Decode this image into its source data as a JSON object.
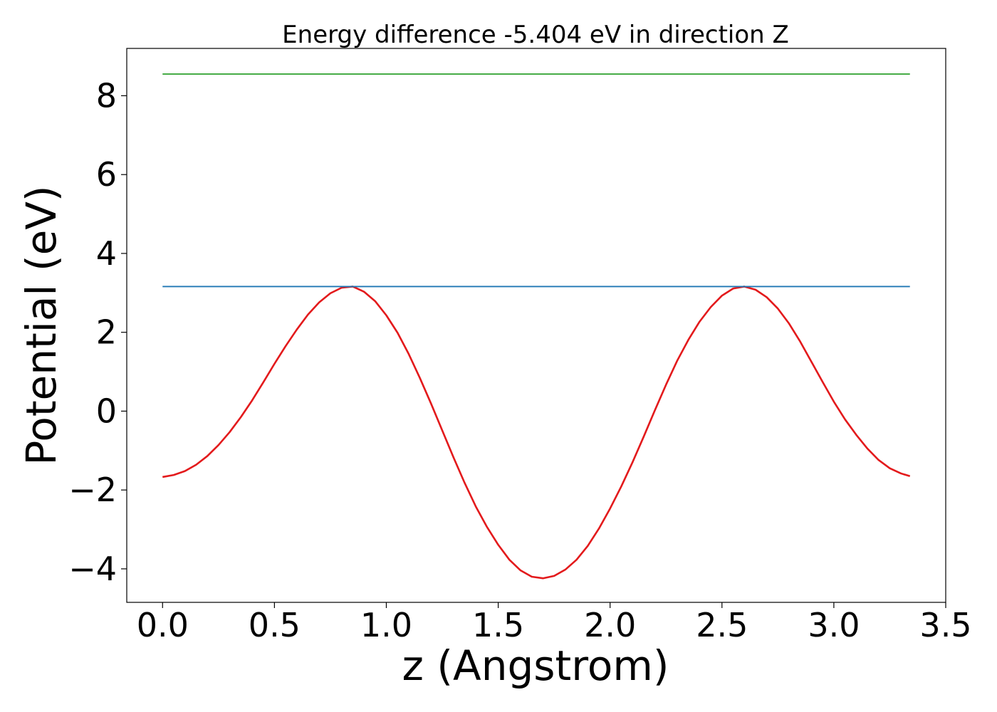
{
  "chart_data": {
    "type": "line",
    "title": "Energy difference -5.404 eV in direction Z",
    "xlabel": "z (Angstrom)",
    "ylabel": "Potential (eV)",
    "xlim": [
      -0.16,
      3.5
    ],
    "ylim": [
      -4.85,
      9.2
    ],
    "xticks": [
      0.0,
      0.5,
      1.0,
      1.5,
      2.0,
      2.5,
      3.0,
      3.5
    ],
    "xtick_labels": [
      "0.0",
      "0.5",
      "1.0",
      "1.5",
      "2.0",
      "2.5",
      "3.0",
      "3.5"
    ],
    "yticks": [
      -4,
      -2,
      0,
      2,
      4,
      6,
      8
    ],
    "ytick_labels": [
      "−4",
      "−2",
      "0",
      "2",
      "4",
      "6",
      "8"
    ],
    "grid": false,
    "legend": "none",
    "series": [
      {
        "color": "#e31a1c",
        "x": [
          0.0,
          0.05,
          0.1,
          0.15,
          0.2,
          0.25,
          0.3,
          0.35,
          0.4,
          0.45,
          0.5,
          0.55,
          0.6,
          0.65,
          0.7,
          0.75,
          0.8,
          0.85,
          0.9,
          0.95,
          1.0,
          1.05,
          1.1,
          1.15,
          1.2,
          1.25,
          1.3,
          1.35,
          1.4,
          1.45,
          1.5,
          1.55,
          1.6,
          1.65,
          1.7,
          1.75,
          1.8,
          1.85,
          1.9,
          1.95,
          2.0,
          2.05,
          2.1,
          2.15,
          2.2,
          2.25,
          2.3,
          2.35,
          2.4,
          2.45,
          2.5,
          2.55,
          2.6,
          2.65,
          2.7,
          2.75,
          2.8,
          2.85,
          2.9,
          2.95,
          3.0,
          3.05,
          3.1,
          3.15,
          3.2,
          3.25,
          3.3,
          3.34
        ],
        "y": [
          -1.67,
          -1.62,
          -1.52,
          -1.36,
          -1.14,
          -0.86,
          -0.53,
          -0.15,
          0.27,
          0.73,
          1.2,
          1.65,
          2.07,
          2.45,
          2.76,
          2.99,
          3.13,
          3.16,
          3.03,
          2.79,
          2.43,
          1.99,
          1.45,
          0.84,
          0.19,
          -0.49,
          -1.17,
          -1.82,
          -2.42,
          -2.94,
          -3.39,
          -3.77,
          -4.04,
          -4.2,
          -4.24,
          -4.18,
          -4.02,
          -3.77,
          -3.42,
          -2.98,
          -2.47,
          -1.91,
          -1.3,
          -0.65,
          0.02,
          0.67,
          1.28,
          1.81,
          2.27,
          2.64,
          2.93,
          3.11,
          3.16,
          3.08,
          2.89,
          2.6,
          2.22,
          1.76,
          1.25,
          0.74,
          0.24,
          -0.21,
          -0.6,
          -0.95,
          -1.24,
          -1.45,
          -1.58,
          -1.65
        ]
      },
      {
        "color": "#1f77b4",
        "x": [
          0.0,
          3.34
        ],
        "y": [
          3.16,
          3.16
        ]
      },
      {
        "color": "#2ca02c",
        "x": [
          0.0,
          3.34
        ],
        "y": [
          8.55,
          8.55
        ]
      }
    ]
  }
}
